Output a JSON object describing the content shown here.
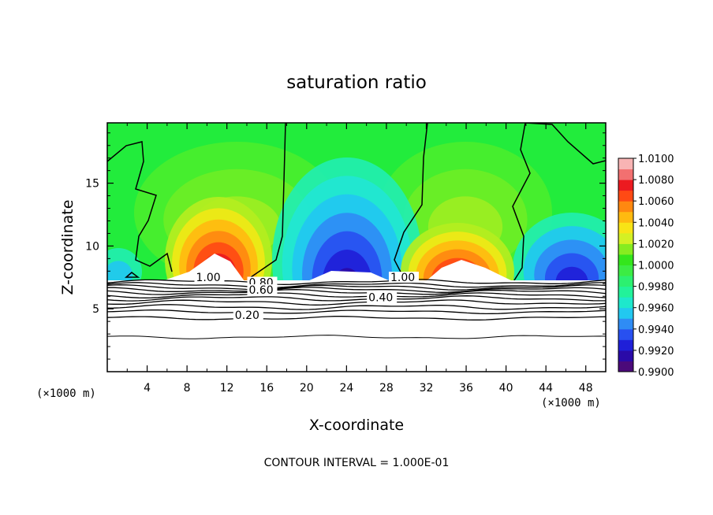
{
  "chart_data": {
    "type": "heatmap",
    "title": "saturation ratio",
    "xlabel": "X-coordinate",
    "ylabel": "Z-coordinate",
    "x_unit": "(×1000 m)",
    "x_unit_right": "(×1000 m)",
    "xlim": [
      0,
      50
    ],
    "ylim": [
      0,
      19.8
    ],
    "x_ticks": [
      4,
      8,
      12,
      16,
      20,
      24,
      28,
      32,
      36,
      40,
      44,
      48
    ],
    "x_tick_labels": [
      "4",
      "8",
      "12",
      "16",
      "20",
      "24",
      "28",
      "32",
      "36",
      "40",
      "44",
      "48"
    ],
    "y_ticks": [
      5,
      10,
      15
    ],
    "y_tick_labels": [
      "5",
      "10",
      "15"
    ],
    "footnote": "CONTOUR INTERVAL = 1.000E-01",
    "colorbar": {
      "labels": [
        "1.0100",
        "1.0080",
        "1.0060",
        "1.0040",
        "1.0020",
        "1.0000",
        "0.9980",
        "0.9960",
        "0.9940",
        "0.9920",
        "0.9900"
      ],
      "min": 0.99,
      "max": 1.01,
      "colors": [
        "#4b0a7a",
        "#2a0aa8",
        "#1f1fd8",
        "#2850f0",
        "#2f8cf5",
        "#22c8f0",
        "#1ee8cc",
        "#22f29a",
        "#2cf070",
        "#3cec44",
        "#34e61c",
        "#86ec20",
        "#d4f024",
        "#f8e416",
        "#ffba10",
        "#ff8810",
        "#ff4a14",
        "#ec1a20",
        "#f27070",
        "#f8b4b4"
      ]
    },
    "contour_labels": [
      {
        "text": "1.00",
        "x": 8.9,
        "z": 7.2
      },
      {
        "text": "0.80",
        "x": 14.2,
        "z": 6.8
      },
      {
        "text": "0.60",
        "x": 14.2,
        "z": 6.2
      },
      {
        "text": "0.40",
        "x": 26.2,
        "z": 5.6
      },
      {
        "text": "0.20",
        "x": 12.8,
        "z": 4.2
      },
      {
        "text": "1.00",
        "x": 28.4,
        "z": 7.2
      }
    ]
  }
}
